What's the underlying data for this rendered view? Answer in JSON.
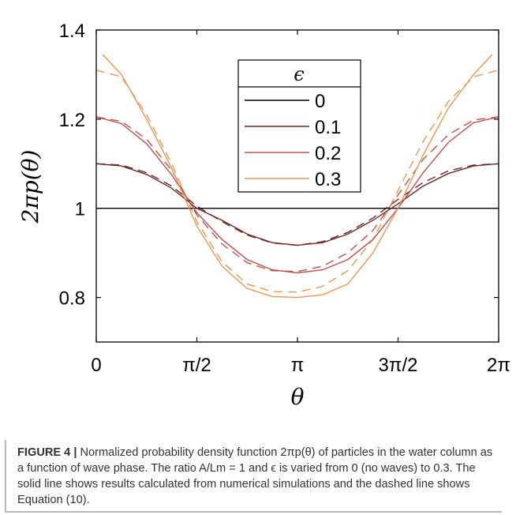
{
  "chart_data": {
    "type": "line",
    "xlabel": "θ",
    "ylabel": "2πp(θ)",
    "xlim": [
      0,
      6.2832
    ],
    "ylim": [
      0.7,
      1.4
    ],
    "x_ticks": [
      {
        "value": 0,
        "label": "0"
      },
      {
        "value": 1.5708,
        "label": "π/2"
      },
      {
        "value": 3.1416,
        "label": "π"
      },
      {
        "value": 4.7124,
        "label": "3π/2"
      },
      {
        "value": 6.2832,
        "label": "2π"
      }
    ],
    "y_ticks": [
      {
        "value": 0.8,
        "label": "0.8"
      },
      {
        "value": 1.0,
        "label": "1"
      },
      {
        "value": 1.2,
        "label": "1.2"
      },
      {
        "value": 1.4,
        "label": "1.4"
      }
    ],
    "grid": false,
    "legend": {
      "title": "ϵ",
      "placement": "top-center"
    },
    "series": [
      {
        "name": "0",
        "color": "#000000",
        "style": "solid",
        "x": [
          0,
          1.5708,
          3.1416,
          4.7124,
          6.2832
        ],
        "y": [
          1.0,
          1.0,
          1.0,
          1.0,
          1.0
        ]
      },
      {
        "name": "0.1",
        "color": "#6b2a27",
        "style": "solid",
        "x": [
          0,
          0.3927,
          0.7854,
          1.1781,
          1.5708,
          1.9635,
          2.3562,
          2.7489,
          3.1416,
          3.5343,
          3.927,
          4.3197,
          4.7124,
          5.1051,
          5.4978,
          5.8905,
          6.2832
        ],
        "y": [
          1.1,
          1.095,
          1.076,
          1.045,
          1.0,
          0.973,
          0.942,
          0.923,
          0.917,
          0.923,
          0.942,
          0.973,
          1.01,
          1.05,
          1.078,
          1.095,
          1.1
        ]
      },
      {
        "name": "0.2",
        "color": "#c0504d",
        "style": "solid",
        "x": [
          0,
          0.3927,
          0.7854,
          1.1781,
          1.5708,
          1.9635,
          2.3562,
          2.7489,
          3.1416,
          3.5343,
          3.927,
          4.3197,
          4.7124,
          5.1051,
          5.4978,
          5.8905,
          6.2832
        ],
        "y": [
          1.205,
          1.19,
          1.145,
          1.075,
          0.99,
          0.93,
          0.885,
          0.862,
          0.855,
          0.862,
          0.885,
          0.93,
          1.0,
          1.08,
          1.148,
          1.192,
          1.205
        ]
      },
      {
        "name": "0.3",
        "color": "#f0964d",
        "style": "solid",
        "x": [
          0.1,
          0.3927,
          0.7854,
          1.1781,
          1.5708,
          1.9635,
          2.3562,
          2.7489,
          3.1416,
          3.5343,
          3.927,
          4.3197,
          4.7124,
          5.1051,
          5.4978,
          5.8905,
          6.1832
        ],
        "y": [
          1.345,
          1.3,
          1.2,
          1.09,
          0.96,
          0.87,
          0.82,
          0.802,
          0.8,
          0.806,
          0.83,
          0.9,
          1.0,
          1.12,
          1.225,
          1.3,
          1.345
        ]
      }
    ],
    "dashed_series": [
      {
        "color": "#6b2a27",
        "x": [
          0,
          0.3927,
          0.7854,
          1.1781,
          1.5708,
          1.9635,
          2.3562,
          2.7489,
          3.1416,
          3.5343,
          3.927,
          4.3197,
          4.7124,
          5.1051,
          5.4978,
          5.8905,
          6.2832
        ],
        "y": [
          1.1,
          1.097,
          1.08,
          1.05,
          1.005,
          0.97,
          0.94,
          0.922,
          0.917,
          0.925,
          0.946,
          0.978,
          1.02,
          1.058,
          1.084,
          1.097,
          1.1
        ]
      },
      {
        "color": "#c0504d",
        "x": [
          0,
          0.3927,
          0.7854,
          1.1781,
          1.5708,
          1.9635,
          2.3562,
          2.7489,
          3.1416,
          3.5343,
          3.927,
          4.3197,
          4.7124,
          5.1051,
          5.4978,
          5.8905,
          6.2832
        ],
        "y": [
          1.205,
          1.195,
          1.155,
          1.085,
          0.985,
          0.92,
          0.878,
          0.86,
          0.858,
          0.87,
          0.9,
          0.95,
          1.03,
          1.11,
          1.165,
          1.198,
          1.205
        ]
      },
      {
        "color": "#f0964d",
        "x": [
          0,
          0.3927,
          0.7854,
          1.1781,
          1.5708,
          1.9635,
          2.3562,
          2.7489,
          3.1416,
          3.5343,
          3.927,
          4.3197,
          4.7124,
          5.1051,
          5.4978,
          5.8905,
          6.2832
        ],
        "y": [
          1.31,
          1.295,
          1.21,
          1.1,
          0.97,
          0.88,
          0.83,
          0.813,
          0.812,
          0.825,
          0.86,
          0.93,
          1.04,
          1.15,
          1.24,
          1.295,
          1.31
        ]
      }
    ]
  },
  "caption": {
    "label": "FIGURE 4 |",
    "text": " Normalized probability density function 2πp(θ) of particles in the water column as a function of wave phase. The ratio A/Lm = 1 and ϵ is varied from 0 (no waves) to 0.3. The solid line shows results calculated from numerical simulations and the dashed line shows Equation (10)."
  }
}
